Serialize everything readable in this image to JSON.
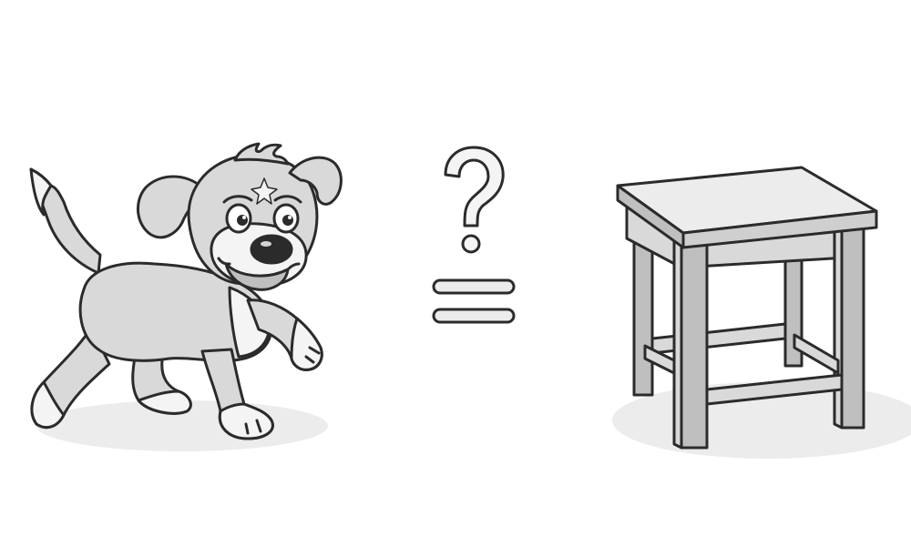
{
  "scene": {
    "left_subject": "dog-illustration",
    "operator": "equals-sign",
    "operator_modifier": "question-mark-icon",
    "right_subject": "stool-illustration"
  },
  "colors": {
    "outline": "#2b2b2b",
    "fill_light": "#d9d9d9",
    "fill_mid": "#bfbfbf",
    "fill_white": "#f4f4f4",
    "shadow": "#ececec"
  }
}
